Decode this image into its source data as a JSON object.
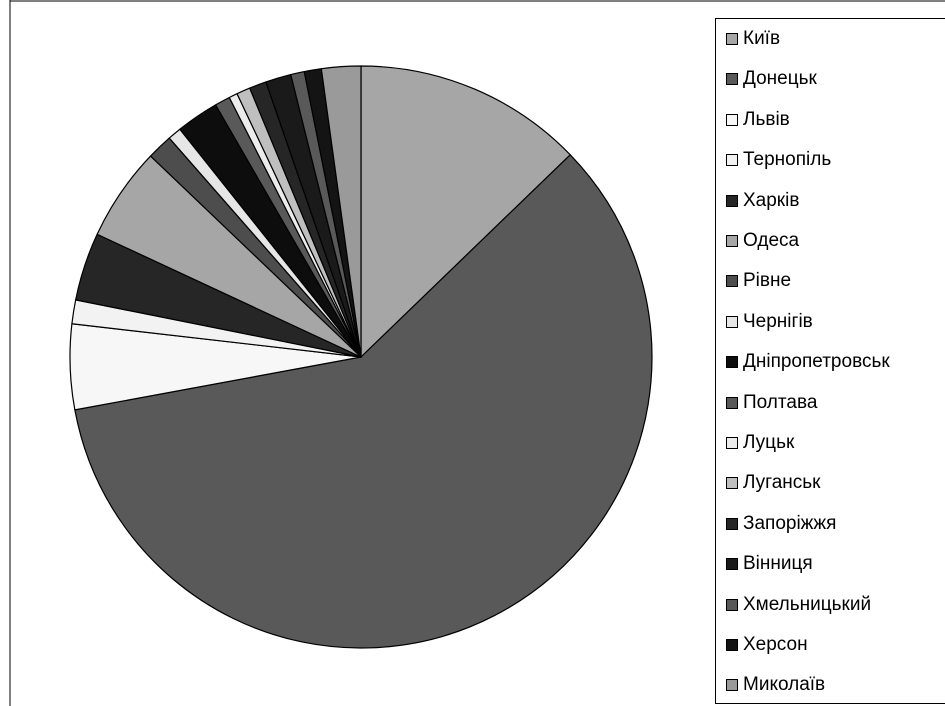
{
  "chart_data": {
    "type": "pie",
    "title": "",
    "legend_position": "right",
    "categories": [
      "Київ",
      "Донецьк",
      "Львів",
      "Тернопіль",
      "Харків",
      "Одеса",
      "Рівне",
      "Чернігів",
      "Дніпропетровськ",
      "Полтава",
      "Луцьк",
      "Луганськ",
      "Запоріжжя",
      "Вінниця",
      "Хмельницький",
      "Херсон",
      "Миколаїв"
    ],
    "values": [
      13.5,
      62.7,
      5.0,
      1.4,
      4.0,
      5.5,
      1.5,
      0.8,
      2.5,
      0.9,
      0.5,
      0.8,
      1.0,
      1.5,
      0.8,
      1.0,
      2.3
    ],
    "colors": [
      "#a6a6a6",
      "#595959",
      "#f7f7f7",
      "#f2f2f2",
      "#262626",
      "#a6a6a6",
      "#4d4d4d",
      "#e6e6e6",
      "#0d0d0d",
      "#595959",
      "#ececec",
      "#bfbfbf",
      "#262626",
      "#1a1a1a",
      "#595959",
      "#141414",
      "#9a9a9a"
    ]
  }
}
